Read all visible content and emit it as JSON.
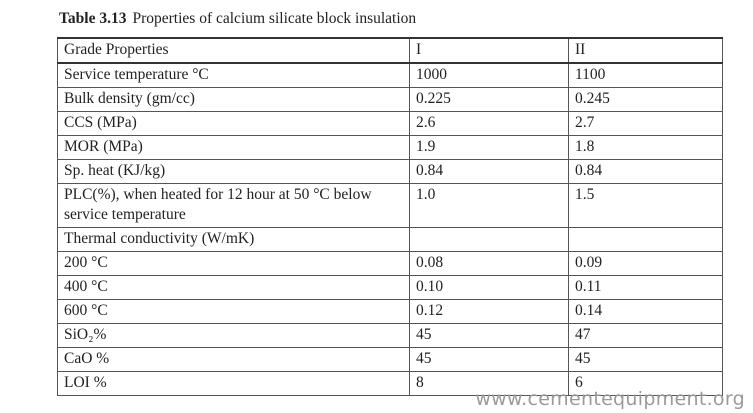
{
  "caption": {
    "label": "Table 3.13",
    "title": "Properties of calcium silicate block insulation"
  },
  "table": {
    "header": [
      "Grade Properties",
      "I",
      "II"
    ],
    "rows": [
      [
        "Service temperature °C",
        "1000",
        "1100"
      ],
      [
        "Bulk density (gm/cc)",
        "0.225",
        "0.245"
      ],
      [
        "CCS (MPa)",
        "2.6",
        "2.7"
      ],
      [
        "MOR (MPa)",
        "1.9",
        "1.8"
      ],
      [
        "Sp. heat (KJ/kg)",
        "0.84",
        "0.84"
      ],
      [
        "PLC(%), when heated for 12 hour at 50 °C below service temperature",
        "1.0",
        "1.5"
      ],
      [
        "Thermal conductivity (W/mK)",
        null,
        null
      ],
      [
        "200 °C",
        "0.08",
        "0.09"
      ],
      [
        "400 °C",
        "0.10",
        "0.11"
      ],
      [
        "600 °C",
        "0.12",
        "0.14"
      ],
      [
        "SiO₂%",
        "45",
        "47"
      ],
      [
        "CaO %",
        "45",
        "45"
      ],
      [
        "LOI %",
        "8",
        "6"
      ]
    ]
  },
  "watermark": "www.cementequipment.org"
}
